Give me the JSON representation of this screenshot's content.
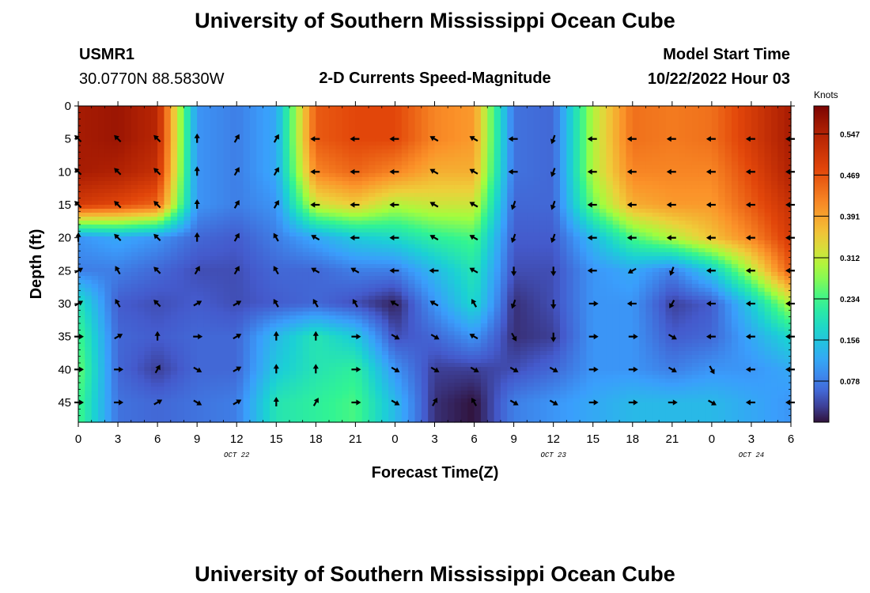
{
  "page": {
    "title": "University of Southern Mississippi Ocean Cube",
    "footer_title": "University of Southern Mississippi Ocean Cube",
    "station_id": "USMR1",
    "coordinates": "30.0770N  88.5830W",
    "model_start_label": "Model Start Time",
    "model_start_value": "10/22/2022 Hour 03"
  },
  "chart_data": {
    "type": "heatmap",
    "title": "2-D Currents Speed-Magnitude",
    "xlabel": "Forecast Time(Z)",
    "ylabel": "Depth (ft)",
    "x_tick_labels": [
      "0",
      "3",
      "6",
      "9",
      "12",
      "15",
      "18",
      "21",
      "0",
      "3",
      "6",
      "9",
      "12",
      "15",
      "18",
      "21",
      "0",
      "3",
      "6"
    ],
    "date_labels": [
      {
        "label": "OCT 22",
        "at_tick": 4
      },
      {
        "label": "OCT 23",
        "at_tick": 12
      },
      {
        "label": "OCT 24",
        "at_tick": 17
      }
    ],
    "xlim_hours": [
      0,
      54
    ],
    "y_ticks": [
      0,
      5,
      10,
      15,
      20,
      25,
      30,
      35,
      40,
      45
    ],
    "ylim": [
      0,
      48
    ],
    "y_inverted": true,
    "colorbar": {
      "unit": "Knots",
      "ticks": [
        "0.547",
        "0.469",
        "0.391",
        "0.312",
        "0.234",
        "0.156",
        "0.078"
      ],
      "tick_values": [
        0.547,
        0.469,
        0.391,
        0.312,
        0.234,
        0.156,
        0.078
      ],
      "vmin": 0,
      "vmax": 0.6,
      "colormap": "turbo"
    },
    "vector_times_hours": [
      0,
      3,
      6,
      9,
      12,
      15,
      18,
      21,
      24,
      27,
      30,
      33,
      36,
      39,
      42,
      45,
      48,
      51,
      54
    ],
    "vector_depths_ft": [
      5,
      10,
      15,
      20,
      25,
      30,
      35,
      40,
      45
    ],
    "speed_knots": [
      [
        0.56,
        0.57,
        0.54,
        0.1,
        0.08,
        0.12,
        0.46,
        0.48,
        0.48,
        0.42,
        0.4,
        0.07,
        0.06,
        0.3,
        0.44,
        0.43,
        0.44,
        0.5,
        0.56
      ],
      [
        0.56,
        0.55,
        0.52,
        0.1,
        0.08,
        0.12,
        0.42,
        0.45,
        0.42,
        0.38,
        0.38,
        0.07,
        0.06,
        0.3,
        0.42,
        0.42,
        0.42,
        0.48,
        0.55
      ],
      [
        0.5,
        0.48,
        0.45,
        0.1,
        0.08,
        0.1,
        0.32,
        0.35,
        0.3,
        0.32,
        0.32,
        0.06,
        0.06,
        0.26,
        0.38,
        0.4,
        0.4,
        0.46,
        0.52
      ],
      [
        0.1,
        0.12,
        0.1,
        0.06,
        0.05,
        0.08,
        0.12,
        0.16,
        0.18,
        0.22,
        0.24,
        0.05,
        0.05,
        0.14,
        0.24,
        0.3,
        0.36,
        0.42,
        0.5
      ],
      [
        0.08,
        0.08,
        0.06,
        0.04,
        0.04,
        0.06,
        0.06,
        0.08,
        0.08,
        0.14,
        0.2,
        0.04,
        0.04,
        0.1,
        0.12,
        0.08,
        0.16,
        0.3,
        0.46
      ],
      [
        0.2,
        0.05,
        0.04,
        0.05,
        0.04,
        0.05,
        0.06,
        0.04,
        0.01,
        0.1,
        0.18,
        0.02,
        0.04,
        0.1,
        0.1,
        0.03,
        0.05,
        0.16,
        0.3
      ],
      [
        0.24,
        0.06,
        0.05,
        0.06,
        0.06,
        0.14,
        0.2,
        0.16,
        0.04,
        0.06,
        0.1,
        0.02,
        0.03,
        0.1,
        0.1,
        0.05,
        0.06,
        0.12,
        0.18
      ],
      [
        0.26,
        0.06,
        0.03,
        0.06,
        0.06,
        0.16,
        0.2,
        0.22,
        0.1,
        0.03,
        0.03,
        0.04,
        0.06,
        0.1,
        0.1,
        0.08,
        0.1,
        0.1,
        0.12
      ],
      [
        0.24,
        0.07,
        0.06,
        0.07,
        0.08,
        0.2,
        0.22,
        0.24,
        0.14,
        0.02,
        0.0,
        0.08,
        0.1,
        0.12,
        0.14,
        0.14,
        0.14,
        0.12,
        0.1
      ]
    ],
    "direction_deg": [
      [
        315,
        315,
        315,
        0,
        30,
        30,
        270,
        270,
        270,
        300,
        300,
        270,
        200,
        270,
        270,
        270,
        270,
        270,
        270
      ],
      [
        315,
        315,
        315,
        0,
        30,
        30,
        270,
        270,
        270,
        300,
        300,
        270,
        200,
        270,
        270,
        270,
        270,
        270,
        270
      ],
      [
        315,
        315,
        315,
        0,
        30,
        30,
        270,
        270,
        270,
        300,
        300,
        200,
        200,
        270,
        270,
        270,
        270,
        270,
        270
      ],
      [
        0,
        315,
        315,
        0,
        30,
        330,
        300,
        270,
        270,
        300,
        300,
        200,
        200,
        270,
        270,
        270,
        270,
        270,
        270
      ],
      [
        60,
        330,
        315,
        30,
        30,
        330,
        300,
        300,
        270,
        270,
        300,
        180,
        180,
        270,
        240,
        200,
        270,
        270,
        270
      ],
      [
        60,
        330,
        315,
        60,
        60,
        330,
        330,
        330,
        300,
        300,
        330,
        200,
        180,
        90,
        270,
        210,
        270,
        270,
        270
      ],
      [
        90,
        60,
        0,
        90,
        60,
        0,
        0,
        90,
        120,
        120,
        300,
        150,
        180,
        90,
        90,
        120,
        270,
        270,
        270
      ],
      [
        90,
        90,
        30,
        120,
        60,
        0,
        0,
        90,
        120,
        120,
        120,
        120,
        120,
        90,
        90,
        120,
        150,
        270,
        270
      ],
      [
        90,
        90,
        60,
        120,
        60,
        0,
        30,
        90,
        120,
        30,
        330,
        120,
        120,
        90,
        90,
        90,
        120,
        270,
        270
      ]
    ]
  }
}
